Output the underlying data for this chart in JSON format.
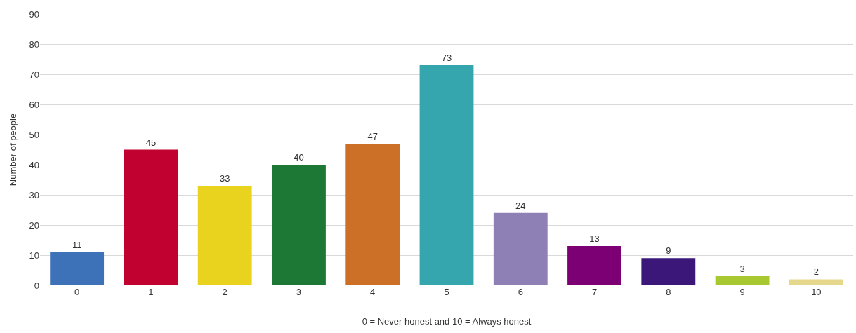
{
  "chart_data": {
    "type": "bar",
    "xlabel": "0 = Never honest and 10 = Always honest",
    "ylabel": "Number of people",
    "categories": [
      "0",
      "1",
      "2",
      "3",
      "4",
      "5",
      "6",
      "7",
      "8",
      "9",
      "10"
    ],
    "values": [
      11,
      45,
      33,
      40,
      47,
      73,
      24,
      13,
      9,
      3,
      2
    ],
    "colors": [
      "#3d72b8",
      "#c10230",
      "#ead31f",
      "#1d7735",
      "#cd7027",
      "#35a5ae",
      "#8e80b4",
      "#7c0073",
      "#3a1778",
      "#a8c832",
      "#e5d88c"
    ],
    "ylim": [
      0,
      90
    ],
    "yticks": [
      0,
      10,
      20,
      30,
      40,
      50,
      60,
      70,
      80,
      90
    ],
    "grid": "y",
    "data_labels": true
  }
}
